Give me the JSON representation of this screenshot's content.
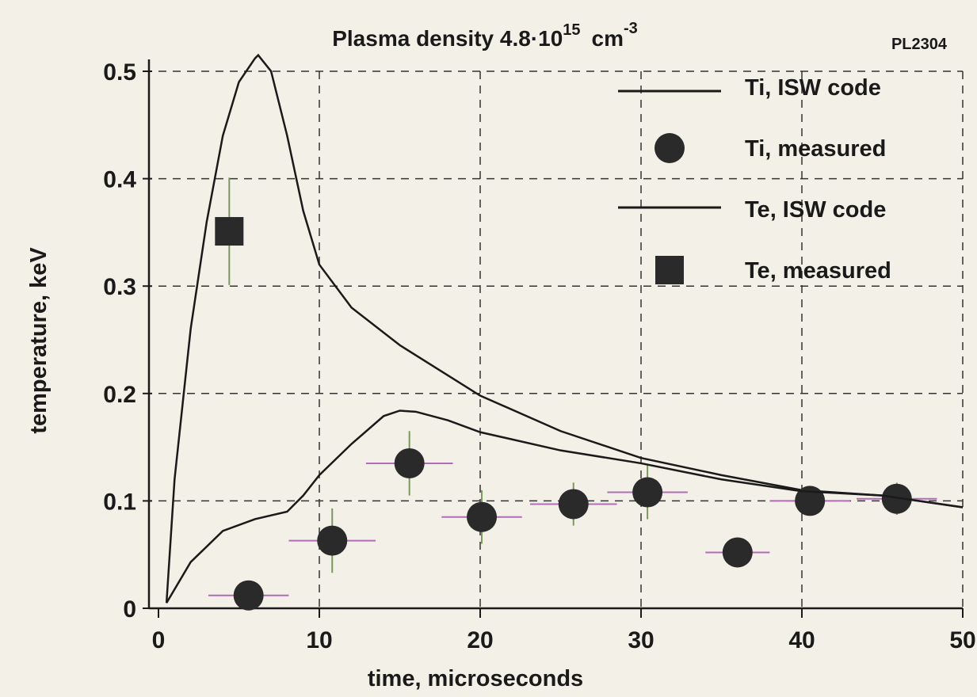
{
  "chart_data": {
    "type": "line",
    "title": "Plasma density 4.8·10",
    "title_exponent": "15",
    "title_unit": "cm",
    "title_unit_exponent": "-3",
    "annotation": "PL2304",
    "x_label": "time, microseconds",
    "y_label": "temperature, keV",
    "xlim": [
      0,
      50
    ],
    "ylim": [
      0,
      0.5
    ],
    "xticks": [
      0,
      10,
      20,
      30,
      40,
      50
    ],
    "yticks": [
      0,
      0.1,
      0.2,
      0.3,
      0.4,
      0.5
    ],
    "grid": true,
    "legend": "upper right",
    "series": [
      {
        "name": "Ti, ISW code",
        "style": "line",
        "color": "#1a1a1a",
        "x": [
          0.5,
          1,
          2,
          3,
          4,
          5,
          6,
          6.2,
          7,
          8,
          9,
          10,
          12,
          15,
          20,
          25,
          30,
          35,
          40,
          45,
          50
        ],
        "values": [
          0.005,
          0.12,
          0.26,
          0.36,
          0.44,
          0.49,
          0.512,
          0.515,
          0.5,
          0.44,
          0.37,
          0.32,
          0.28,
          0.245,
          0.198,
          0.165,
          0.14,
          0.124,
          0.11,
          0.105,
          0.094
        ]
      },
      {
        "name": "Ti, measured",
        "style": "circle",
        "color": "#2a2a2a",
        "x": [
          5.6,
          10.8,
          15.6,
          20.1,
          25.8,
          30.4,
          36.0,
          40.5,
          45.9
        ],
        "values": [
          0.012,
          0.063,
          0.135,
          0.085,
          0.097,
          0.108,
          0.052,
          0.1,
          0.102
        ],
        "xerr": [
          2.5,
          2.7,
          2.7,
          2.5,
          2.7,
          2.5,
          2,
          2.5,
          2.5
        ],
        "yerr": [
          0,
          0.03,
          0.03,
          0.025,
          0.02,
          0.025,
          0,
          0.01,
          0.015
        ]
      },
      {
        "name": "Te, ISW code",
        "style": "line",
        "color": "#1a1a1a",
        "x": [
          0.5,
          2,
          4,
          6,
          8,
          9,
          10,
          12,
          14,
          15,
          16,
          18,
          20,
          25,
          30,
          35,
          40,
          45,
          50
        ],
        "values": [
          0.005,
          0.043,
          0.072,
          0.083,
          0.09,
          0.105,
          0.124,
          0.153,
          0.179,
          0.184,
          0.183,
          0.175,
          0.164,
          0.147,
          0.135,
          0.12,
          0.109,
          0.105,
          0.094
        ]
      },
      {
        "name": "Te, measured",
        "style": "square",
        "color": "#2a2a2a",
        "x": [
          4.4
        ],
        "values": [
          0.351
        ],
        "xerr": [
          0
        ],
        "yerr": [
          0.05
        ]
      }
    ]
  }
}
